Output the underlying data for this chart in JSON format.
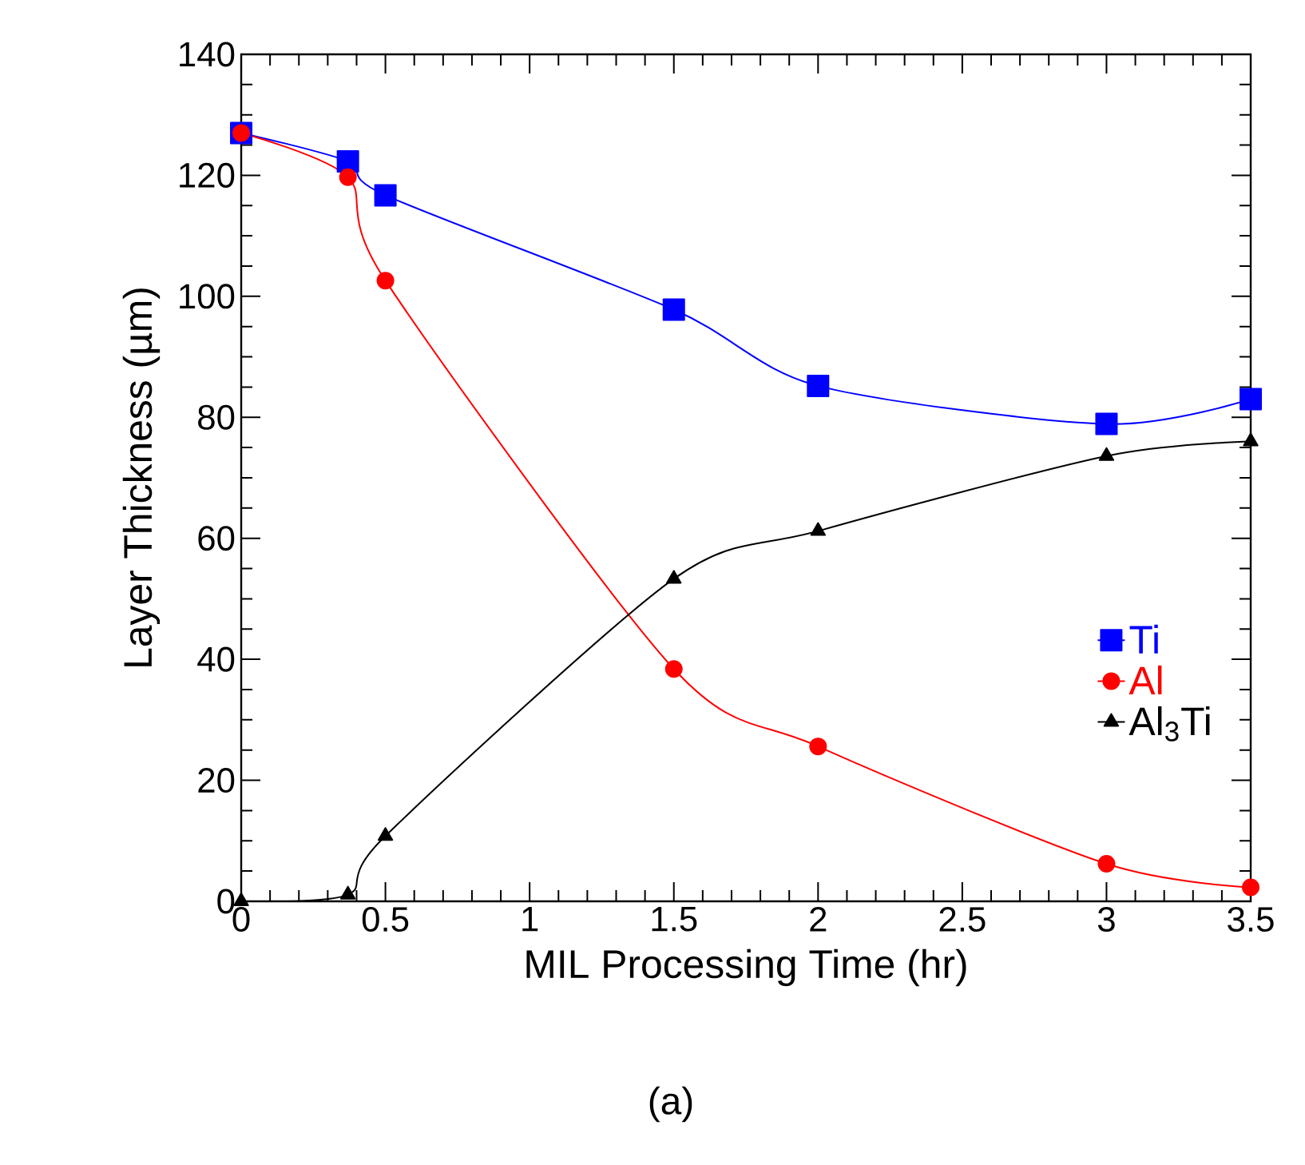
{
  "chart_data": {
    "type": "line",
    "xlabel": "MIL Processing Time (hr)",
    "ylabel": "Layer Thickness (µm)",
    "xlim": [
      0,
      3.5
    ],
    "ylim": [
      0,
      140
    ],
    "xticks": [
      {
        "value": 0,
        "label": "0"
      },
      {
        "value": 0.5,
        "label": "0.5"
      },
      {
        "value": 1,
        "label": "1"
      },
      {
        "value": 1.5,
        "label": "1.5"
      },
      {
        "value": 2,
        "label": "2"
      },
      {
        "value": 2.5,
        "label": "2.5"
      },
      {
        "value": 3,
        "label": "3"
      },
      {
        "value": 3.5,
        "label": "3.5"
      }
    ],
    "yticks": [
      0,
      20,
      40,
      60,
      80,
      100,
      120,
      140
    ],
    "x": [
      0,
      0.37,
      0.5,
      1.5,
      2,
      3,
      3.5
    ],
    "series": [
      {
        "name": "Ti",
        "color": "#0000ff",
        "marker": "square",
        "values": [
          127,
          122.3,
          116.7,
          97.8,
          85.2,
          78.9,
          83
        ]
      },
      {
        "name": "Al",
        "color": "#ff0000",
        "marker": "circle",
        "values": [
          127,
          119.7,
          102.6,
          38.4,
          25.6,
          6.2,
          2.3
        ]
      },
      {
        "name": "Al$_{3}$Ti",
        "color": "#000000",
        "marker": "triangle",
        "values": [
          0,
          1.1,
          10.8,
          53.3,
          61.2,
          73.6,
          76
        ]
      }
    ],
    "legend": "right",
    "grid": false,
    "line_style": "solid",
    "annotations": [
      "(a)"
    ]
  }
}
